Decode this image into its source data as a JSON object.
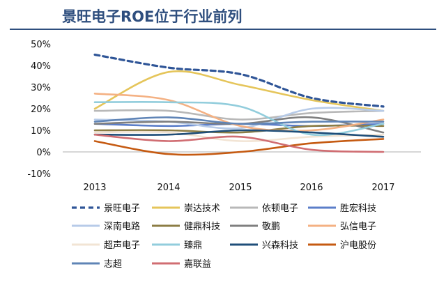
{
  "title": "景旺电子ROE位于行业前列",
  "colors": {
    "title": "#2e4e7e",
    "title_rule": "#2e4e7e",
    "axis_text": "#111111",
    "zero_line": "#bfbfbf"
  },
  "chart_data": {
    "type": "line",
    "title": "景旺电子ROE位于行业前列",
    "xlabel": "",
    "ylabel": "",
    "x": [
      "2013",
      "2014",
      "2015",
      "2016",
      "2017"
    ],
    "ylim": [
      -10,
      50
    ],
    "y_ticks": [
      "-10%",
      "0%",
      "10%",
      "20%",
      "30%",
      "40%",
      "50%"
    ],
    "y_tick_values": [
      -10,
      0,
      10,
      20,
      30,
      40,
      50
    ],
    "grid": false,
    "legend_position": "bottom",
    "series": [
      {
        "name": "景旺电子",
        "color": "#2f5597",
        "dash": true,
        "values": [
          45,
          39,
          36,
          25,
          21
        ]
      },
      {
        "name": "崇达技术",
        "color": "#e5c55a",
        "dash": false,
        "values": [
          20,
          37,
          31,
          24,
          19
        ]
      },
      {
        "name": "依顿电子",
        "color": "#b8b8b8",
        "dash": false,
        "values": [
          19,
          19,
          15,
          18,
          19
        ]
      },
      {
        "name": "胜宏科技",
        "color": "#5b7ec9",
        "dash": false,
        "values": [
          13,
          12,
          13,
          12,
          13
        ]
      },
      {
        "name": "深南电路",
        "color": "#b7cbe8",
        "dash": false,
        "values": [
          15,
          14,
          11,
          20,
          19
        ]
      },
      {
        "name": "健鼎科技",
        "color": "#8c7d45",
        "dash": false,
        "values": [
          10,
          10,
          9,
          12,
          12
        ]
      },
      {
        "name": "敬鹏",
        "color": "#7f7f7f",
        "dash": false,
        "values": [
          13,
          14,
          13,
          16,
          9
        ]
      },
      {
        "name": "弘信电子",
        "color": "#f4b183",
        "dash": false,
        "values": [
          27,
          24,
          12,
          10,
          15
        ]
      },
      {
        "name": "超声电子",
        "color": "#f2e4d4",
        "dash": false,
        "values": [
          9,
          9,
          5,
          7,
          8
        ]
      },
      {
        "name": "臻鼎",
        "color": "#92cddc",
        "dash": false,
        "values": [
          23,
          23,
          21,
          8,
          13
        ]
      },
      {
        "name": "兴森科技",
        "color": "#1f4e79",
        "dash": false,
        "values": [
          8,
          8,
          10,
          9,
          7
        ]
      },
      {
        "name": "沪电股份",
        "color": "#c55a11",
        "dash": false,
        "values": [
          5,
          -1,
          0,
          4,
          6
        ]
      },
      {
        "name": "志超",
        "color": "#5f84b6",
        "dash": false,
        "values": [
          14,
          16,
          13,
          14,
          14
        ]
      },
      {
        "name": "嘉联益",
        "color": "#d06d72",
        "dash": false,
        "values": [
          8,
          5,
          7,
          1,
          0
        ]
      }
    ]
  }
}
